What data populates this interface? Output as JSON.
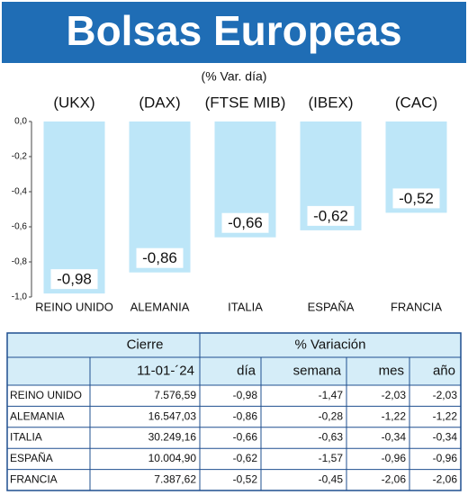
{
  "chart_data": {
    "type": "bar",
    "title": "Bolsas Europeas",
    "subtitle": "(% Var. día)",
    "codes": [
      "(UKX)",
      "(DAX)",
      "(FTSE MIB)",
      "(IBEX)",
      "(CAC)"
    ],
    "categories": [
      "REINO UNIDO",
      "ALEMANIA",
      "ITALIA",
      "ESPAÑA",
      "FRANCIA"
    ],
    "values": [
      -0.98,
      -0.86,
      -0.66,
      -0.62,
      -0.52
    ],
    "value_labels": [
      "-0,98",
      "-0,86",
      "-0,66",
      "-0,62",
      "-0,52"
    ],
    "color": "#bde6f8",
    "ylim": [
      -1.0,
      0
    ],
    "yticks": [
      {
        "value": 0,
        "label": "0,0"
      },
      {
        "value": -0.2,
        "label": "-0,2"
      },
      {
        "value": -0.4,
        "label": "-0,4"
      },
      {
        "value": -0.6,
        "label": "-0,6"
      },
      {
        "value": -0.8,
        "label": "-0,8"
      },
      {
        "value": -1.0,
        "label": "-1,0"
      }
    ],
    "grid": false
  },
  "table": {
    "header": [
      [
        "Cierre",
        "% Variación"
      ],
      [
        "11-01-´24",
        "día",
        "semana",
        "mes",
        "año"
      ]
    ],
    "rows": [
      [
        "REINO UNIDO",
        "7.576,59",
        "-0,98",
        "-1,47",
        "-2,03",
        "-2,03"
      ],
      [
        "ALEMANIA",
        "16.547,03",
        "-0,86",
        "-0,28",
        "-1,22",
        "-1,22"
      ],
      [
        "ITALIA",
        "30.249,16",
        "-0,66",
        "-0,63",
        "-0,34",
        "-0,34"
      ],
      [
        "ESPAÑA",
        "10.004,90",
        "-0,62",
        "-1,57",
        "-0,96",
        "-0,96"
      ],
      [
        "FRANCIA",
        "7.387,62",
        "-0,52",
        "-0,45",
        "-2,06",
        "-2,06"
      ]
    ]
  }
}
